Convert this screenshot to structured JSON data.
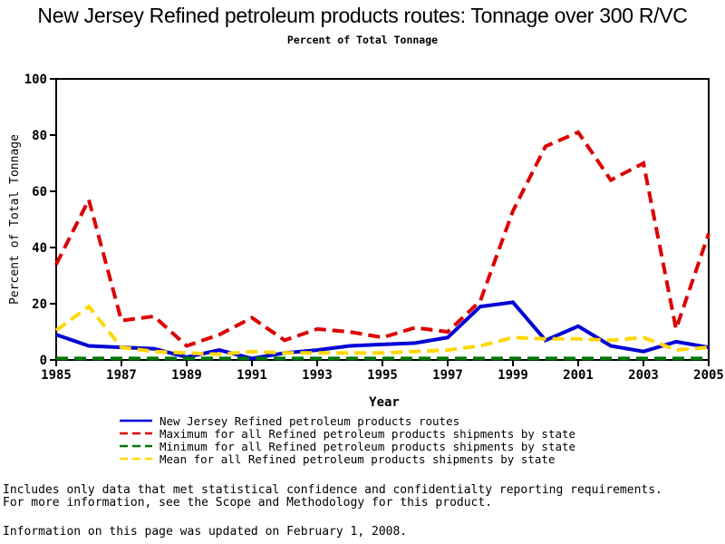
{
  "title": "New Jersey Refined petroleum products routes: Tonnage over 300 R/VC",
  "subtitle": "Percent of Total Tonnage",
  "chart_data": {
    "type": "line",
    "x": [
      1985,
      1986,
      1987,
      1988,
      1989,
      1990,
      1991,
      1992,
      1993,
      1994,
      1995,
      1996,
      1997,
      1998,
      1999,
      2000,
      2001,
      2002,
      2003,
      2004,
      2005
    ],
    "xlabel": "Year",
    "ylabel": "Percent of Total Tonnage",
    "ylim": [
      0,
      100
    ],
    "yticks": [
      0,
      20,
      40,
      60,
      80,
      100
    ],
    "xtick_labels": [
      1985,
      1987,
      1989,
      1991,
      1993,
      1995,
      1997,
      1999,
      2001,
      2003,
      2005
    ],
    "grid": false,
    "legend_position": "bottom",
    "frame_color": "#000000",
    "series": [
      {
        "name": "New Jersey Refined petroleum products routes",
        "color": "#0000D6",
        "style": "solid",
        "values": [
          9,
          5,
          4.5,
          4,
          1,
          3.5,
          0.5,
          2.5,
          3.5,
          5,
          5.5,
          6,
          8,
          19,
          20.5,
          7,
          12,
          5,
          3,
          6.5,
          4.5
        ]
      },
      {
        "name": "Maximum for all Refined petroleum products shipments by state",
        "color": "#DD0000",
        "style": "dashed",
        "values": [
          34,
          57,
          14,
          15.5,
          5,
          9,
          15,
          7,
          11,
          10,
          8,
          11.5,
          10,
          21,
          53,
          76,
          81,
          64,
          70,
          11,
          45
        ]
      },
      {
        "name": "Minimum for all Refined petroleum products shipments by state",
        "color": "#007700",
        "style": "dashed",
        "values": [
          0.5,
          0.5,
          0.5,
          0.5,
          0.5,
          0.5,
          0.5,
          0.5,
          0.5,
          0.5,
          0.5,
          0.5,
          0.5,
          0.5,
          0.5,
          0.5,
          0.5,
          0.5,
          0.5,
          0.5,
          0.5
        ]
      },
      {
        "name": "Mean for all Refined petroleum products shipments by state",
        "color": "#FFD700",
        "style": "dashed",
        "values": [
          10.5,
          19,
          4.5,
          3,
          2.5,
          2,
          3,
          2.5,
          2.5,
          2.5,
          2.5,
          3,
          3.5,
          5,
          8,
          7.5,
          7.5,
          7,
          8,
          3.5,
          4.5
        ]
      }
    ]
  },
  "footer": {
    "line1": "Includes only data that met statistical confidence and confidentialty reporting requirements.",
    "line2": "For more information, see the Scope and Methodology for this product.",
    "line3": "Information on this page was updated on February 1, 2008."
  }
}
